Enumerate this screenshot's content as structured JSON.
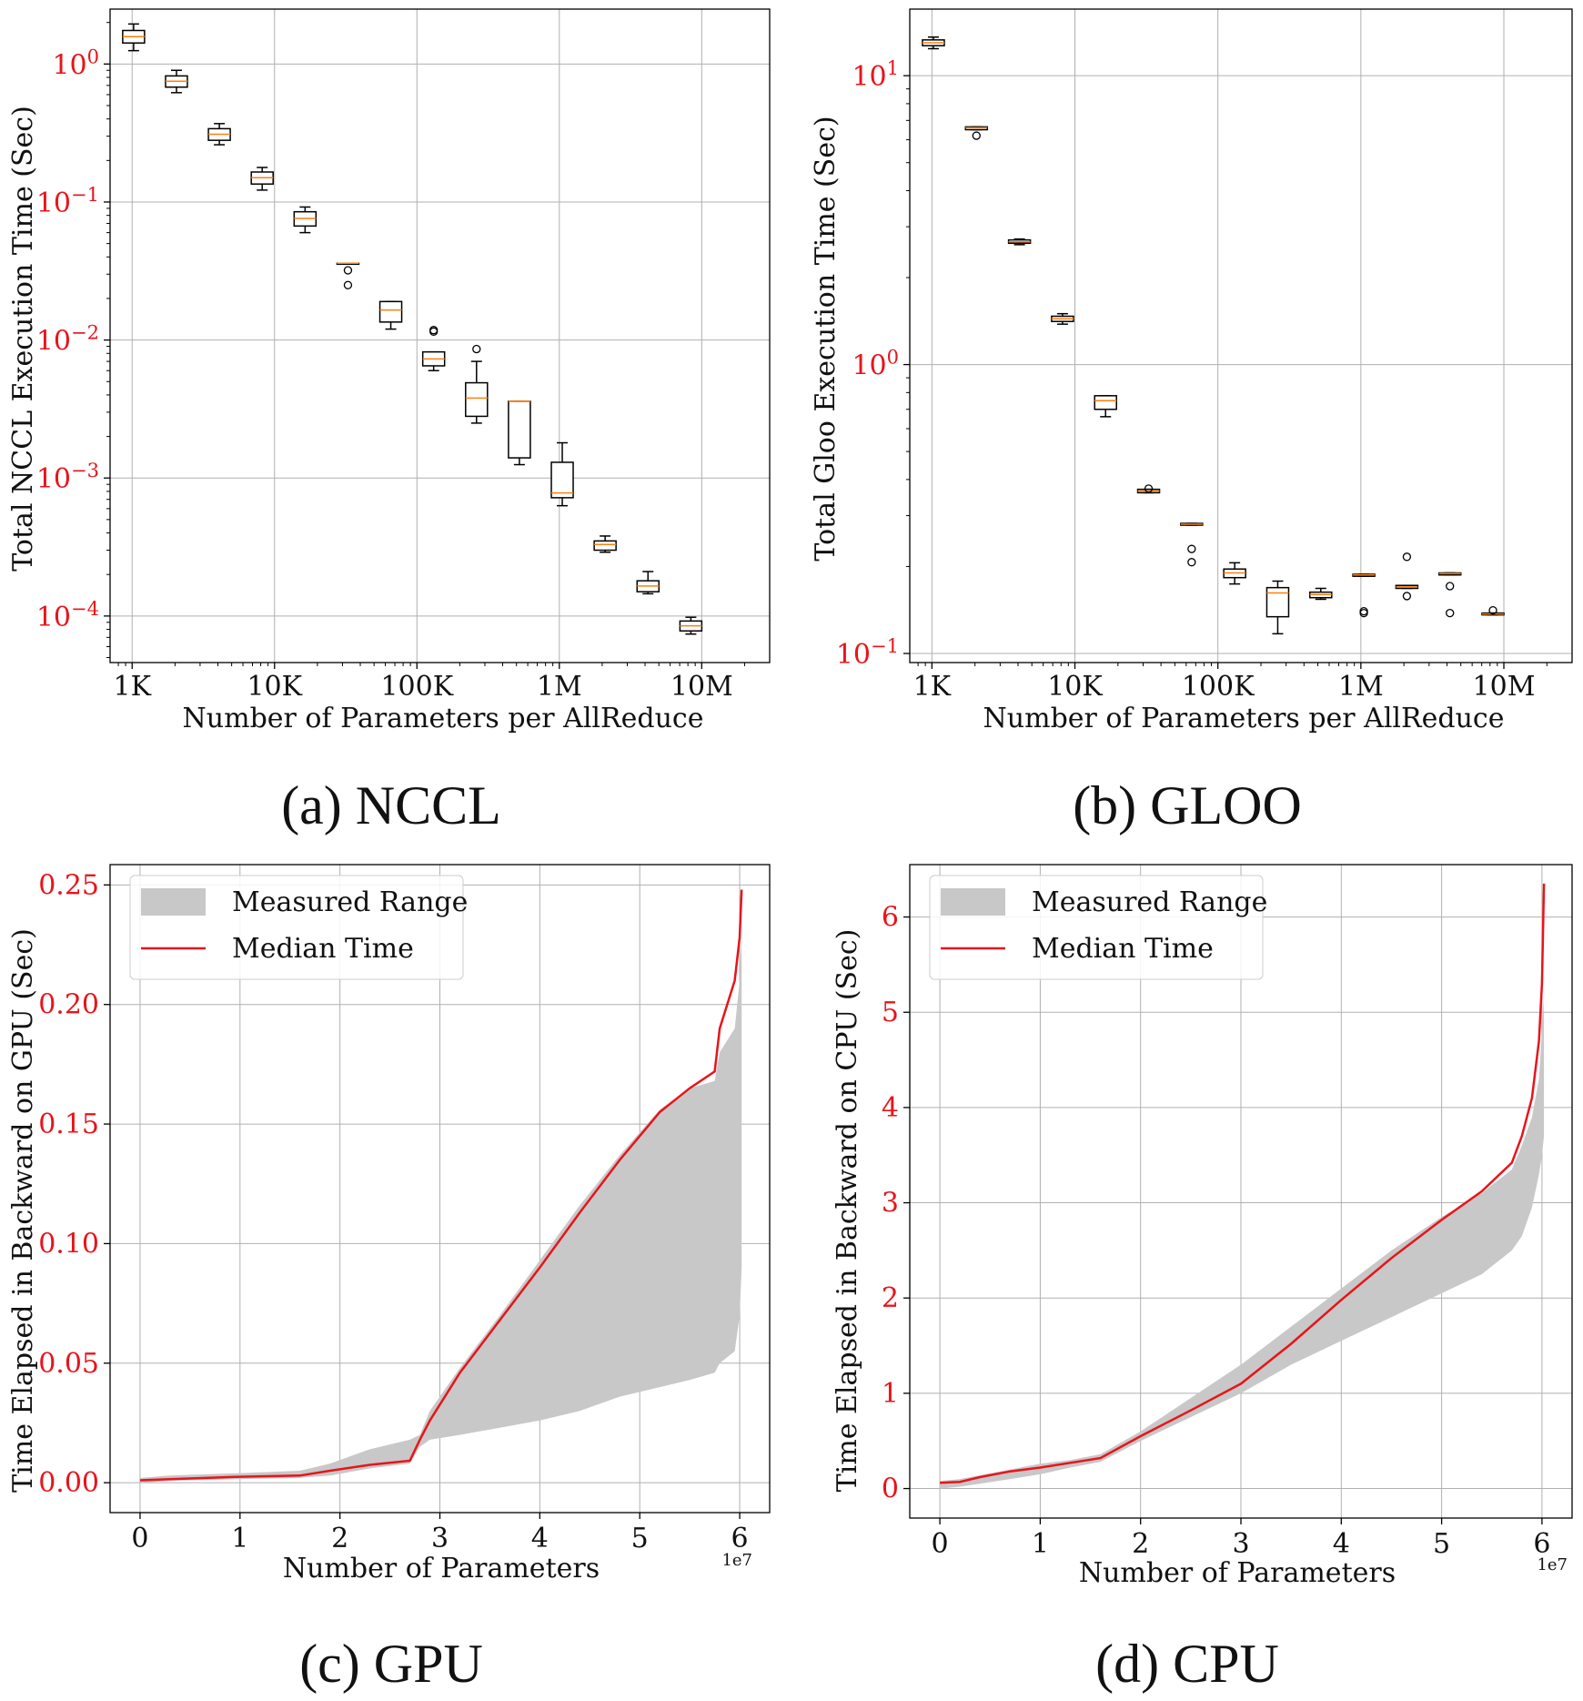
{
  "chart_data": [
    {
      "type": "box",
      "caption": "(a) NCCL",
      "xlabel": "Number of Parameters per AllReduce",
      "ylabel": "Total NCCL Execution Time (Sec)",
      "yscale": "log",
      "xscale": "log",
      "xlim": [
        700,
        30000000
      ],
      "ylim": [
        4.6e-05,
        2.5
      ],
      "xticks": [
        1000,
        10000,
        100000,
        1000000,
        10000000
      ],
      "xticklabels": [
        "1K",
        "10K",
        "100K",
        "1M",
        "10M"
      ],
      "yticks": [
        0.0001,
        0.001,
        0.01,
        0.1,
        1
      ],
      "ytick_exponents": [
        "−4",
        "−3",
        "−2",
        "−1",
        "0"
      ],
      "ytick_base": "10",
      "grid": true,
      "boxes": [
        {
          "x": 1024,
          "whislo": 1.25,
          "q1": 1.42,
          "med": 1.58,
          "q3": 1.75,
          "whishi": 1.95,
          "fliers": []
        },
        {
          "x": 2048,
          "whislo": 0.62,
          "q1": 0.68,
          "med": 0.75,
          "q3": 0.82,
          "whishi": 0.9,
          "fliers": []
        },
        {
          "x": 4096,
          "whislo": 0.26,
          "q1": 0.28,
          "med": 0.31,
          "q3": 0.34,
          "whishi": 0.37,
          "fliers": []
        },
        {
          "x": 8192,
          "whislo": 0.122,
          "q1": 0.135,
          "med": 0.15,
          "q3": 0.165,
          "whishi": 0.178,
          "fliers": []
        },
        {
          "x": 16384,
          "whislo": 0.06,
          "q1": 0.067,
          "med": 0.076,
          "q3": 0.085,
          "whishi": 0.092,
          "fliers": []
        },
        {
          "x": 32768,
          "whislo": 0.036,
          "q1": 0.036,
          "med": 0.036,
          "q3": 0.036,
          "whishi": 0.036,
          "fliers": [
            0.032,
            0.025
          ]
        },
        {
          "x": 65536,
          "whislo": 0.012,
          "q1": 0.0135,
          "med": 0.0165,
          "q3": 0.019,
          "whishi": 0.019,
          "fliers": []
        },
        {
          "x": 131072,
          "whislo": 0.006,
          "q1": 0.0065,
          "med": 0.0073,
          "q3": 0.0082,
          "whishi": 0.0082,
          "fliers": [
            0.0118,
            0.0115
          ]
        },
        {
          "x": 262144,
          "whislo": 0.0025,
          "q1": 0.0028,
          "med": 0.0038,
          "q3": 0.0049,
          "whishi": 0.007,
          "fliers": [
            0.0086
          ]
        },
        {
          "x": 524288,
          "whislo": 0.00125,
          "q1": 0.0014,
          "med": 0.0036,
          "q3": 0.0036,
          "whishi": 0.0036,
          "fliers": []
        },
        {
          "x": 1048576,
          "whislo": 0.00063,
          "q1": 0.00072,
          "med": 0.00078,
          "q3": 0.0013,
          "whishi": 0.0018,
          "fliers": []
        },
        {
          "x": 2097152,
          "whislo": 0.00029,
          "q1": 0.0003,
          "med": 0.00033,
          "q3": 0.00035,
          "whishi": 0.00038,
          "fliers": []
        },
        {
          "x": 4194304,
          "whislo": 0.000145,
          "q1": 0.00015,
          "med": 0.000165,
          "q3": 0.00018,
          "whishi": 0.00021,
          "fliers": []
        },
        {
          "x": 8388608,
          "whislo": 7.4e-05,
          "q1": 7.8e-05,
          "med": 8.5e-05,
          "q3": 9.2e-05,
          "whishi": 9.8e-05,
          "fliers": []
        }
      ]
    },
    {
      "type": "box",
      "caption": "(b) GLOO",
      "xlabel": "Number of Parameters per AllReduce",
      "ylabel": "Total Gloo Execution Time (Sec)",
      "yscale": "log",
      "xscale": "log",
      "xlim": [
        700,
        30000000
      ],
      "ylim": [
        0.093,
        17
      ],
      "xticks": [
        1000,
        10000,
        100000,
        1000000,
        10000000
      ],
      "xticklabels": [
        "1K",
        "10K",
        "100K",
        "1M",
        "10M"
      ],
      "yticks": [
        0.1,
        1,
        10
      ],
      "ytick_exponents": [
        "−1",
        "0",
        "1"
      ],
      "ytick_base": "10",
      "grid": true,
      "boxes": [
        {
          "x": 1024,
          "whislo": 12.4,
          "q1": 12.7,
          "med": 13.0,
          "q3": 13.3,
          "whishi": 13.6,
          "fliers": []
        },
        {
          "x": 2048,
          "whislo": 6.5,
          "q1": 6.5,
          "med": 6.6,
          "q3": 6.65,
          "whishi": 6.65,
          "fliers": [
            6.2
          ]
        },
        {
          "x": 4096,
          "whislo": 2.6,
          "q1": 2.63,
          "med": 2.66,
          "q3": 2.7,
          "whishi": 2.72,
          "fliers": []
        },
        {
          "x": 8192,
          "whislo": 1.38,
          "q1": 1.41,
          "med": 1.44,
          "q3": 1.47,
          "whishi": 1.5,
          "fliers": []
        },
        {
          "x": 16384,
          "whislo": 0.66,
          "q1": 0.7,
          "med": 0.75,
          "q3": 0.78,
          "whishi": 0.78,
          "fliers": []
        },
        {
          "x": 32768,
          "whislo": 0.36,
          "q1": 0.36,
          "med": 0.365,
          "q3": 0.37,
          "whishi": 0.37,
          "fliers": [
            0.372
          ]
        },
        {
          "x": 65536,
          "whislo": 0.278,
          "q1": 0.278,
          "med": 0.28,
          "q3": 0.282,
          "whishi": 0.282,
          "fliers": [
            0.23,
            0.207
          ]
        },
        {
          "x": 131072,
          "whislo": 0.174,
          "q1": 0.183,
          "med": 0.19,
          "q3": 0.196,
          "whishi": 0.206,
          "fliers": []
        },
        {
          "x": 262144,
          "whislo": 0.117,
          "q1": 0.134,
          "med": 0.162,
          "q3": 0.169,
          "whishi": 0.178,
          "fliers": []
        },
        {
          "x": 524288,
          "whislo": 0.154,
          "q1": 0.156,
          "med": 0.16,
          "q3": 0.163,
          "whishi": 0.168,
          "fliers": []
        },
        {
          "x": 1048576,
          "whislo": 0.185,
          "q1": 0.185,
          "med": 0.187,
          "q3": 0.188,
          "whishi": 0.188,
          "fliers": [
            0.14,
            0.138
          ]
        },
        {
          "x": 2097152,
          "whislo": 0.168,
          "q1": 0.168,
          "med": 0.17,
          "q3": 0.172,
          "whishi": 0.172,
          "fliers": [
            0.216,
            0.158
          ]
        },
        {
          "x": 4194304,
          "whislo": 0.187,
          "q1": 0.187,
          "med": 0.189,
          "q3": 0.19,
          "whishi": 0.19,
          "fliers": [
            0.171,
            0.138
          ]
        },
        {
          "x": 8388608,
          "whislo": 0.136,
          "q1": 0.136,
          "med": 0.137,
          "q3": 0.138,
          "whishi": 0.138,
          "fliers": [
            0.141
          ]
        }
      ]
    },
    {
      "type": "area",
      "caption": "(c) GPU",
      "xlabel": "Number of Parameters",
      "ylabel": "Time Elapsed in Backward on GPU (Sec)",
      "x_offset_label": "1e7",
      "xlim": [
        -0.3,
        6.3
      ],
      "ylim": [
        -0.0125,
        0.2585
      ],
      "xticks": [
        0,
        1,
        2,
        3,
        4,
        5,
        6
      ],
      "xticklabels": [
        "0",
        "1",
        "2",
        "3",
        "4",
        "5",
        "6"
      ],
      "yticks": [
        0.0,
        0.05,
        0.1,
        0.15,
        0.2,
        0.25
      ],
      "yticklabels": [
        "0.00",
        "0.05",
        "0.10",
        "0.15",
        "0.20",
        "0.25"
      ],
      "grid": true,
      "legend": {
        "position": "upper left",
        "entries": [
          "Measured Range",
          "Median Time"
        ]
      },
      "series": [
        {
          "name": "Median Time",
          "x": [
            0.0,
            0.3,
            1.0,
            1.6,
            1.9,
            2.3,
            2.7,
            2.8,
            2.9,
            3.2,
            3.6,
            4.0,
            4.4,
            4.8,
            5.2,
            5.5,
            5.75,
            5.8,
            5.95,
            6.0,
            6.02
          ],
          "y": [
            0.001,
            0.0015,
            0.0025,
            0.003,
            0.005,
            0.0075,
            0.0092,
            0.018,
            0.026,
            0.046,
            0.068,
            0.09,
            0.113,
            0.135,
            0.155,
            0.165,
            0.172,
            0.19,
            0.21,
            0.228,
            0.248
          ]
        },
        {
          "name": "Measured Range",
          "x": [
            0.0,
            0.3,
            1.0,
            1.6,
            1.9,
            2.3,
            2.7,
            2.8,
            2.9,
            3.2,
            3.6,
            4.0,
            4.4,
            4.8,
            5.2,
            5.5,
            5.75,
            5.8,
            5.95,
            6.0,
            6.02
          ],
          "lower": [
            0.0,
            0.0008,
            0.0015,
            0.002,
            0.003,
            0.006,
            0.008,
            0.015,
            0.018,
            0.02,
            0.023,
            0.026,
            0.03,
            0.036,
            0.04,
            0.043,
            0.046,
            0.05,
            0.055,
            0.07,
            0.09
          ],
          "upper": [
            0.002,
            0.003,
            0.004,
            0.005,
            0.008,
            0.014,
            0.018,
            0.02,
            0.03,
            0.048,
            0.07,
            0.093,
            0.116,
            0.137,
            0.156,
            0.165,
            0.168,
            0.18,
            0.19,
            0.21,
            0.232
          ]
        }
      ]
    },
    {
      "type": "area",
      "caption": "(d) CPU",
      "xlabel": "Number of Parameters",
      "ylabel": "Time Elapsed in Backward on CPU (Sec)",
      "x_offset_label": "1e7",
      "xlim": [
        -0.3,
        6.3
      ],
      "ylim": [
        -0.31,
        6.55
      ],
      "xticks": [
        0,
        1,
        2,
        3,
        4,
        5,
        6
      ],
      "xticklabels": [
        "0",
        "1",
        "2",
        "3",
        "4",
        "5",
        "6"
      ],
      "yticks": [
        0,
        1,
        2,
        3,
        4,
        5,
        6
      ],
      "yticklabels": [
        "0",
        "1",
        "2",
        "3",
        "4",
        "5",
        "6"
      ],
      "grid": true,
      "legend": {
        "position": "upper left",
        "entries": [
          "Measured Range",
          "Median Time"
        ]
      },
      "series": [
        {
          "name": "Median Time",
          "x": [
            0.0,
            0.2,
            0.4,
            0.7,
            1.0,
            1.3,
            1.6,
            2.0,
            2.5,
            3.0,
            3.5,
            4.0,
            4.5,
            5.0,
            5.4,
            5.7,
            5.8,
            5.9,
            5.97,
            6.0,
            6.02
          ],
          "y": [
            0.06,
            0.07,
            0.12,
            0.18,
            0.22,
            0.27,
            0.32,
            0.55,
            0.82,
            1.1,
            1.52,
            1.98,
            2.42,
            2.82,
            3.12,
            3.42,
            3.7,
            4.1,
            4.7,
            5.3,
            6.35
          ]
        },
        {
          "name": "Measured Range",
          "x": [
            0.0,
            0.2,
            0.4,
            0.7,
            1.0,
            1.3,
            1.6,
            2.0,
            2.5,
            3.0,
            3.5,
            4.0,
            4.5,
            5.0,
            5.4,
            5.7,
            5.8,
            5.9,
            5.97,
            6.0,
            6.02
          ],
          "lower": [
            0.0,
            0.02,
            0.05,
            0.1,
            0.15,
            0.22,
            0.28,
            0.5,
            0.75,
            1.0,
            1.3,
            1.55,
            1.8,
            2.05,
            2.25,
            2.5,
            2.65,
            2.95,
            3.3,
            3.5,
            3.7
          ],
          "upper": [
            0.08,
            0.1,
            0.14,
            0.2,
            0.26,
            0.3,
            0.36,
            0.6,
            0.95,
            1.3,
            1.7,
            2.1,
            2.5,
            2.85,
            3.1,
            3.35,
            3.6,
            3.9,
            4.3,
            4.8,
            5.2
          ]
        }
      ]
    }
  ]
}
